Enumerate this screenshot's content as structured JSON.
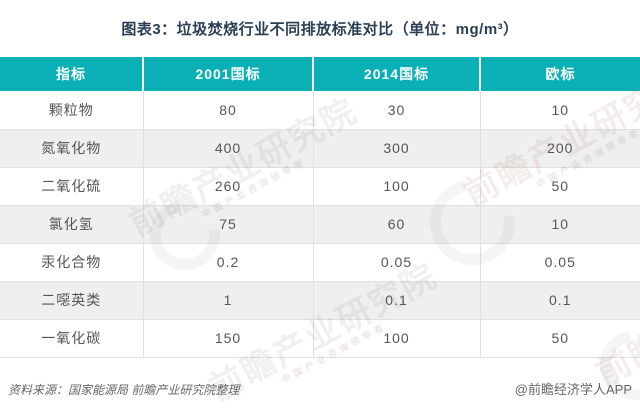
{
  "title": "图表3：垃圾焚烧行业不同排放标准对比（单位：mg/m³）",
  "chart_data": {
    "type": "table",
    "title": "图表3：垃圾焚烧行业不同排放标准对比",
    "unit": "mg/m³",
    "columns": [
      "指标",
      "2001国标",
      "2014国标",
      "欧标"
    ],
    "rows": [
      [
        "颗粒物",
        80,
        30,
        10
      ],
      [
        "氮氧化物",
        400,
        300,
        200
      ],
      [
        "二氧化硫",
        260,
        100,
        50
      ],
      [
        "氯化氢",
        75,
        60,
        10
      ],
      [
        "汞化合物",
        0.2,
        0.05,
        0.05
      ],
      [
        "二噁英类",
        1,
        0.1,
        0.1
      ],
      [
        "一氧化碳",
        150,
        100,
        50
      ]
    ]
  },
  "footer": {
    "source": "资料来源：国家能源局  前瞻产业研究院整理",
    "credit": "@前瞻经济学人APP"
  },
  "watermark": {
    "text": "前瞻产业研究院",
    "subtext": "中国产业咨询领导者"
  },
  "colors": {
    "header_bg": "#0bb0b6",
    "header_text": "#ffffff",
    "row_alt_bg": "#efefef",
    "body_text": "#555555",
    "title_text": "#2a3f54",
    "border": "#e0e0e0",
    "footer_text": "#666666"
  }
}
